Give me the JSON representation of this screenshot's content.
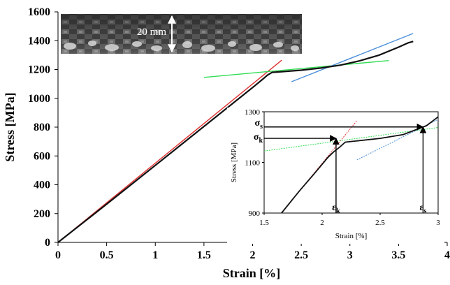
{
  "chart_data": [
    {
      "type": "line",
      "xlabel": "Strain [%]",
      "ylabel": "Stress [MPa]",
      "xlim": [
        0,
        4
      ],
      "ylim": [
        0,
        1600
      ],
      "x_ticks": [
        0,
        0.5,
        1,
        1.5,
        2,
        2.5,
        3,
        3.5,
        4
      ],
      "x_tick_labels": [
        "0",
        "0.5",
        "1",
        "1.5",
        "2",
        "2.5",
        "3",
        "3.5",
        "4"
      ],
      "y_ticks": [
        0,
        200,
        400,
        600,
        800,
        1000,
        1200,
        1400,
        1600
      ],
      "y_tick_labels": [
        "0",
        "200",
        "400",
        "600",
        "800",
        "1000",
        "1200",
        "1400",
        "1600"
      ],
      "grid": false,
      "legend": "none",
      "series": [
        {
          "color": "#111111",
          "role": "measured",
          "x": [
            0,
            0.5,
            1,
            1.5,
            2,
            2.1,
            2.15,
            2.2,
            2.3,
            2.5,
            2.7,
            2.9,
            3.1,
            3.3,
            3.5,
            3.6,
            3.65
          ],
          "y": [
            0,
            265,
            535,
            805,
            1075,
            1130,
            1160,
            1180,
            1185,
            1195,
            1210,
            1230,
            1260,
            1300,
            1355,
            1385,
            1395
          ]
        },
        {
          "color": "#e03030",
          "role": "linear fit",
          "x": [
            0,
            2.3
          ],
          "y": [
            0,
            1265
          ]
        },
        {
          "color": "#33dd55",
          "role": "linear fit",
          "x": [
            1.5,
            3.4
          ],
          "y": [
            1145,
            1262
          ]
        },
        {
          "color": "#4a90d9",
          "role": "linear fit",
          "x": [
            2.4,
            3.65
          ],
          "y": [
            1115,
            1450
          ]
        }
      ],
      "annotations": [
        {
          "text": "20 mm",
          "kind": "scale bar on specimen photo"
        }
      ]
    },
    {
      "type": "line",
      "inset": true,
      "xlabel": "Strain [%]",
      "ylabel": "Stress [MPa]",
      "xlim": [
        1.5,
        3
      ],
      "ylim": [
        900,
        1300
      ],
      "x_ticks": [
        1.5,
        2,
        2.5,
        3
      ],
      "x_tick_labels": [
        "1.5",
        "2",
        "2.5",
        "3"
      ],
      "y_ticks": [
        900,
        1100,
        1300
      ],
      "y_tick_labels": [
        "900",
        "1100",
        "1300"
      ],
      "series": [
        {
          "color": "#111111",
          "x": [
            1.65,
            1.8,
            1.95,
            2.05,
            2.1,
            2.15,
            2.2,
            2.3,
            2.5,
            2.7,
            2.9,
            3.0
          ],
          "y": [
            900,
            985,
            1065,
            1120,
            1142,
            1160,
            1180,
            1185,
            1195,
            1210,
            1245,
            1280
          ]
        },
        {
          "color": "#e03030",
          "x": [
            1.65,
            2.3
          ],
          "y": [
            900,
            1265
          ]
        },
        {
          "color": "#33dd55",
          "x": [
            1.5,
            3.0
          ],
          "y": [
            1145,
            1238
          ]
        },
        {
          "color": "#4a90d9",
          "x": [
            2.3,
            3.0
          ],
          "y": [
            1110,
            1270
          ]
        }
      ],
      "markers": [
        {
          "label": "σ",
          "subscript": "s",
          "y": 1240
        },
        {
          "label": "σ",
          "subscript": "k",
          "y": 1195
        },
        {
          "label": "ε",
          "subscript": "k",
          "x": 2.12
        },
        {
          "label": "ε",
          "subscript": "s",
          "x": 2.87
        }
      ]
    }
  ],
  "photo": {
    "scale_label": "20 mm"
  }
}
